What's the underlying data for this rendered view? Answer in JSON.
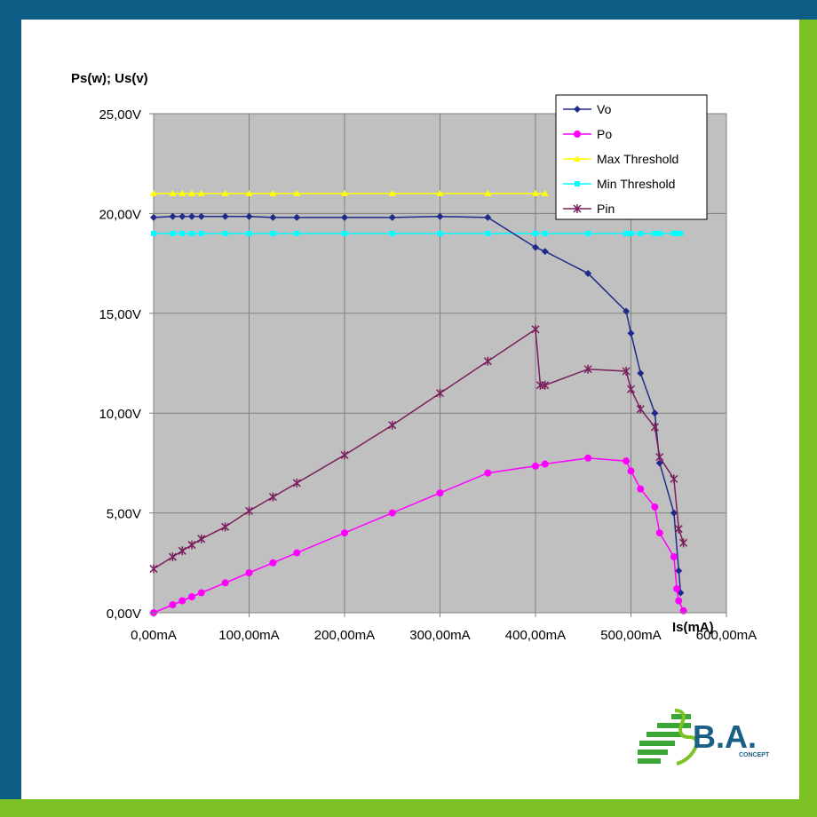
{
  "colors": {
    "frame_blue": "#0d5c85",
    "frame_green": "#7cc224",
    "plot_bg": "#c0c0c0",
    "grid": "#808080",
    "Vo": "#1f2a8a",
    "Po": "#ff00ff",
    "Max Threshold": "#ffff00",
    "Min Threshold": "#00ffff",
    "Pin": "#7a1f5c"
  },
  "logo": {
    "brand": "B.A.",
    "sub": "CONCEPT",
    "icon": "stripes-logo-icon"
  },
  "chart_data": {
    "type": "line",
    "ylabel": "Ps(w); Us(v)",
    "xlabel": "Is(mA)",
    "xlim": [
      0,
      600
    ],
    "ylim": [
      0,
      25
    ],
    "x_ticks": [
      0,
      100,
      200,
      300,
      400,
      500,
      600
    ],
    "x_tick_labels": [
      "0,00mA",
      "100,00mA",
      "200,00mA",
      "300,00mA",
      "400,00mA",
      "500,00mA",
      "600,00mA"
    ],
    "y_ticks": [
      0,
      5,
      10,
      15,
      20,
      25
    ],
    "y_tick_labels": [
      "0,00V",
      "5,00V",
      "10,00V",
      "15,00V",
      "20,00V",
      "25,00V"
    ],
    "grid": true,
    "legend_position": "top-right",
    "series": [
      {
        "name": "Vo",
        "marker": "diamond",
        "x": [
          0,
          20,
          30,
          40,
          50,
          75,
          100,
          125,
          150,
          200,
          250,
          300,
          350,
          400,
          410,
          455,
          495,
          500,
          510,
          525,
          530,
          545,
          550,
          552
        ],
        "y": [
          19.8,
          19.85,
          19.85,
          19.85,
          19.85,
          19.85,
          19.85,
          19.8,
          19.8,
          19.8,
          19.8,
          19.85,
          19.8,
          18.3,
          18.1,
          17.0,
          15.1,
          14.0,
          12.0,
          10.0,
          7.5,
          5.0,
          2.1,
          1.0
        ]
      },
      {
        "name": "Po",
        "marker": "circle",
        "x": [
          0,
          20,
          30,
          40,
          50,
          75,
          100,
          125,
          150,
          200,
          250,
          300,
          350,
          400,
          410,
          455,
          495,
          500,
          510,
          525,
          530,
          545,
          548,
          550,
          555
        ],
        "y": [
          0.0,
          0.4,
          0.6,
          0.8,
          1.0,
          1.5,
          2.0,
          2.5,
          3.0,
          4.0,
          5.0,
          6.0,
          7.0,
          7.35,
          7.45,
          7.75,
          7.6,
          7.1,
          6.2,
          5.3,
          4.0,
          2.8,
          1.2,
          0.6,
          0.1
        ]
      },
      {
        "name": "Max Threshold",
        "marker": "triangle",
        "x": [
          0,
          20,
          30,
          40,
          50,
          75,
          100,
          125,
          150,
          200,
          250,
          300,
          350,
          400,
          410
        ],
        "y": [
          21,
          21,
          21,
          21,
          21,
          21,
          21,
          21,
          21,
          21,
          21,
          21,
          21,
          21,
          21
        ]
      },
      {
        "name": "Min Threshold",
        "marker": "square",
        "x": [
          0,
          20,
          30,
          40,
          50,
          75,
          100,
          125,
          150,
          200,
          250,
          300,
          350,
          400,
          410,
          455,
          495,
          500,
          510,
          525,
          530,
          545,
          548,
          550,
          552
        ],
        "y": [
          19,
          19,
          19,
          19,
          19,
          19,
          19,
          19,
          19,
          19,
          19,
          19,
          19,
          19,
          19,
          19,
          19,
          19,
          19,
          19,
          19,
          19,
          19,
          19,
          19
        ]
      },
      {
        "name": "Pin",
        "marker": "star",
        "x": [
          0,
          20,
          30,
          40,
          50,
          75,
          100,
          125,
          150,
          200,
          250,
          300,
          350,
          400,
          405,
          410,
          455,
          495,
          500,
          510,
          525,
          530,
          545,
          550,
          555
        ],
        "y": [
          2.2,
          2.8,
          3.1,
          3.4,
          3.7,
          4.3,
          5.1,
          5.8,
          6.5,
          7.9,
          9.4,
          11.0,
          12.6,
          14.2,
          11.4,
          11.4,
          12.2,
          12.1,
          11.2,
          10.2,
          9.3,
          7.8,
          6.7,
          4.2,
          3.5
        ]
      }
    ]
  }
}
